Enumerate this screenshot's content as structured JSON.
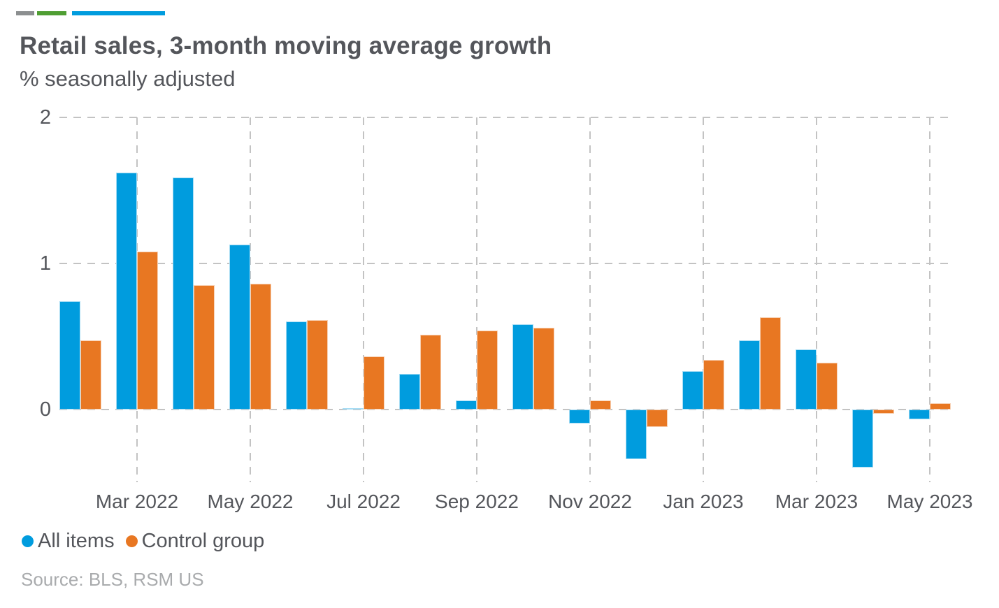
{
  "header": {
    "title": "Retail sales, 3-month moving average growth",
    "subtitle": "% seasonally adjusted",
    "accent_bars": [
      {
        "name": "gray-accent-bar",
        "color": "#8C8F90"
      },
      {
        "name": "green-accent-bar",
        "color": "#4F9E33"
      },
      {
        "name": "blue-accent-bar",
        "color": "#009CDE"
      }
    ]
  },
  "chart_data": {
    "type": "bar",
    "title": "Retail sales, 3-month moving average growth",
    "subtitle": "% seasonally adjusted",
    "categories": [
      "Feb 2022",
      "Mar 2022",
      "Apr 2022",
      "May 2022",
      "Jun 2022",
      "Jul 2022",
      "Aug 2022",
      "Sep 2022",
      "Oct 2022",
      "Nov 2022",
      "Dec 2022",
      "Jan 2023",
      "Feb 2023",
      "Mar 2023",
      "Apr 2023",
      "May 2023"
    ],
    "series": [
      {
        "name": "All items",
        "color": "#009CDE",
        "values": [
          0.74,
          1.62,
          1.59,
          1.13,
          0.6,
          0.01,
          0.24,
          0.06,
          0.58,
          -0.1,
          -0.34,
          0.26,
          0.47,
          0.41,
          -0.4,
          -0.07
        ]
      },
      {
        "name": "Control group",
        "color": "#E87722",
        "values": [
          0.47,
          1.08,
          0.85,
          0.86,
          0.61,
          0.36,
          0.51,
          0.54,
          0.56,
          0.06,
          -0.12,
          0.34,
          0.63,
          0.32,
          -0.03,
          0.04
        ]
      }
    ],
    "x_tick_labels": [
      "Mar 2022",
      "May 2022",
      "Jul 2022",
      "Sep 2022",
      "Nov 2022",
      "Jan 2023",
      "Mar 2023",
      "May 2023"
    ],
    "y_ticks": [
      0,
      1,
      2
    ],
    "ylim": [
      -0.5,
      2
    ],
    "xlabel": "",
    "ylabel": "% seasonally adjusted",
    "grid": "dashed",
    "gridline_color": "#C3C3C3",
    "legend_position": "bottom-left"
  },
  "source": {
    "text": "Source: BLS, RSM US"
  }
}
